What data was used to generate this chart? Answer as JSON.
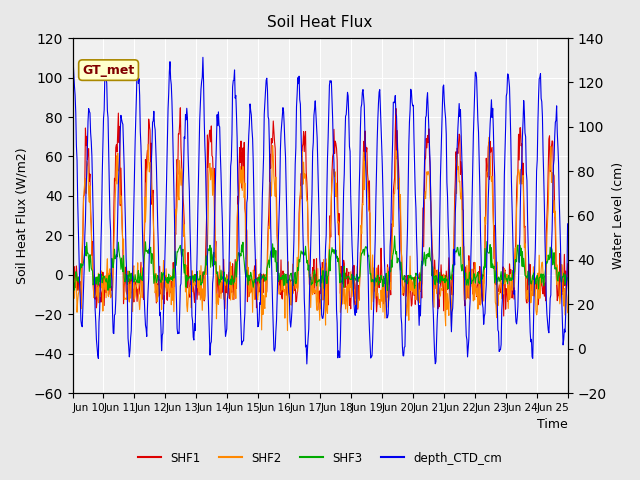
{
  "title": "Soil Heat Flux",
  "ylabel_left": "Soil Heat Flux (W/m2)",
  "ylabel_right": "Water Level (cm)",
  "xlabel": "Time",
  "xlim": [
    0,
    16
  ],
  "ylim_left": [
    -60,
    120
  ],
  "ylim_right": [
    -20,
    140
  ],
  "yticks_left": [
    -60,
    -40,
    -20,
    0,
    20,
    40,
    60,
    80,
    100,
    120
  ],
  "yticks_right": [
    -20,
    0,
    20,
    40,
    60,
    80,
    100,
    120,
    140
  ],
  "xtick_positions": [
    0,
    1,
    2,
    3,
    4,
    5,
    6,
    7,
    8,
    9,
    10,
    11,
    12,
    13,
    14,
    15,
    16
  ],
  "xtick_labels": [
    "Jun 10",
    "Jun 11",
    "Jun 12",
    "Jun 13",
    "Jun 14",
    "Jun 15",
    "Jun 16",
    "Jun 17",
    "Jun 18",
    "Jun 19",
    "Jun 20",
    "Jun 21",
    "Jun 22",
    "Jun 23",
    "Jun 24",
    "Jun 25",
    ""
  ],
  "legend_labels": [
    "SHF1",
    "SHF2",
    "SHF3",
    "depth_CTD_cm"
  ],
  "colors": {
    "SHF1": "#dd0000",
    "SHF2": "#ff8800",
    "SHF3": "#00aa00",
    "depth_CTD_cm": "#0000ee"
  },
  "gt_met_label": "GT_met",
  "gt_met_color": "#800000",
  "gt_met_bg": "#ffffcc",
  "background_color": "#e8e8e8",
  "axes_bg": "#f0f0f0",
  "grid_color": "#ffffff"
}
